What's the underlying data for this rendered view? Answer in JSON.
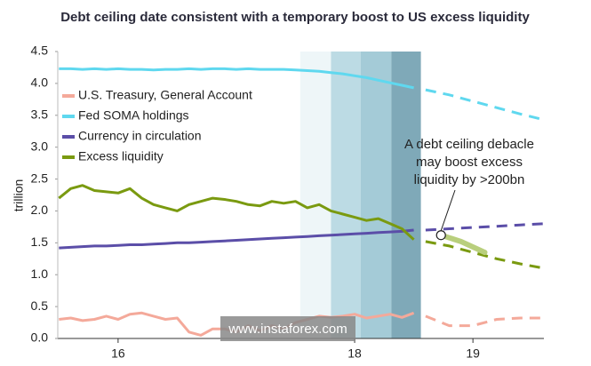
{
  "chart_data": {
    "type": "line",
    "title": "Debt ceiling date consistent with a temporary boost to US excess liquidity",
    "ylabel": "trillion",
    "xlim": [
      2015.49,
      2019.6
    ],
    "ylim": [
      0,
      4.5
    ],
    "xticks": [
      {
        "value": 2016,
        "label": "16"
      },
      {
        "value": 2018,
        "label": "18"
      },
      {
        "value": 2019,
        "label": "19"
      }
    ],
    "yticks": [
      {
        "value": 0,
        "label": "0.0"
      },
      0.5,
      {
        "value": 1,
        "label": "1.0"
      },
      1.5,
      {
        "value": 2,
        "label": "2.0"
      },
      2.5,
      {
        "value": 3,
        "label": "3.0"
      },
      3.5,
      {
        "value": 4,
        "label": "4.0"
      },
      4.5
    ],
    "shaded_ranges": [
      {
        "x": [
          2017.54,
          2017.8
        ],
        "color": "#eef6f8"
      },
      {
        "x": [
          2017.8,
          2018.05
        ],
        "color": "#bcdbe4"
      },
      {
        "x": [
          2018.05,
          2018.31
        ],
        "color": "#a4cbd7"
      },
      {
        "x": [
          2018.31,
          2018.56
        ],
        "color": "#7fa9b8"
      }
    ],
    "x": [
      2015.5,
      2015.6,
      2015.7,
      2015.8,
      2015.9,
      2016.0,
      2016.1,
      2016.2,
      2016.3,
      2016.4,
      2016.5,
      2016.6,
      2016.7,
      2016.8,
      2016.9,
      2017.0,
      2017.1,
      2017.2,
      2017.3,
      2017.4,
      2017.5,
      2017.6,
      2017.7,
      2017.8,
      2017.9,
      2018.0,
      2018.1,
      2018.2,
      2018.3,
      2018.4,
      2018.5
    ],
    "forecast_x": [
      2018.6,
      2018.8,
      2019.0,
      2019.2,
      2019.4,
      2019.6
    ],
    "series": [
      {
        "name": "U.S. Treasury, General Account",
        "color": "#f4a99a",
        "values": [
          0.3,
          0.32,
          0.28,
          0.3,
          0.35,
          0.3,
          0.38,
          0.4,
          0.35,
          0.3,
          0.32,
          0.1,
          0.05,
          0.15,
          0.15,
          0.1,
          0.2,
          0.12,
          0.2,
          0.15,
          0.25,
          0.3,
          0.35,
          0.33,
          0.35,
          0.38,
          0.32,
          0.35,
          0.38,
          0.33,
          0.4
        ],
        "forecast_values": [
          0.35,
          0.2,
          0.2,
          0.3,
          0.32,
          0.32
        ]
      },
      {
        "name": "Fed SOMA holdings",
        "color": "#5fd8ef",
        "values": [
          4.23,
          4.23,
          4.22,
          4.23,
          4.22,
          4.23,
          4.22,
          4.22,
          4.21,
          4.22,
          4.22,
          4.23,
          4.22,
          4.23,
          4.23,
          4.22,
          4.23,
          4.22,
          4.22,
          4.22,
          4.21,
          4.2,
          4.19,
          4.17,
          4.15,
          4.12,
          4.09,
          4.05,
          4.01,
          3.97,
          3.93
        ],
        "forecast_values": [
          3.9,
          3.82,
          3.72,
          3.62,
          3.52,
          3.43
        ]
      },
      {
        "name": "Currency in circulation",
        "color": "#5b4ea8",
        "values": [
          1.42,
          1.43,
          1.44,
          1.45,
          1.45,
          1.46,
          1.47,
          1.47,
          1.48,
          1.49,
          1.5,
          1.5,
          1.51,
          1.52,
          1.53,
          1.54,
          1.55,
          1.56,
          1.57,
          1.58,
          1.59,
          1.6,
          1.61,
          1.62,
          1.63,
          1.64,
          1.65,
          1.66,
          1.67,
          1.68,
          1.7
        ],
        "forecast_values": [
          1.7,
          1.72,
          1.74,
          1.76,
          1.78,
          1.8
        ]
      },
      {
        "name": "Excess liquidity",
        "color": "#7a9a10",
        "values": [
          2.2,
          2.35,
          2.4,
          2.32,
          2.3,
          2.28,
          2.35,
          2.2,
          2.1,
          2.05,
          2.0,
          2.1,
          2.15,
          2.2,
          2.18,
          2.15,
          2.1,
          2.08,
          2.15,
          2.12,
          2.15,
          2.05,
          2.1,
          2.0,
          1.95,
          1.9,
          1.85,
          1.88,
          1.8,
          1.72,
          1.55
        ],
        "forecast_values": [
          1.52,
          1.45,
          1.35,
          1.25,
          1.17,
          1.1
        ]
      }
    ],
    "boost_line": {
      "color": "#b9cf7d",
      "x": [
        2018.73,
        2018.9,
        2019.1
      ],
      "values": [
        1.62,
        1.52,
        1.35
      ]
    },
    "annotation": {
      "lines": [
        "A debt ceiling debacle",
        "may boost excess",
        "liquidity by >200bn"
      ],
      "point": [
        2018.73,
        1.62
      ]
    },
    "watermark": "www.instaforex.com"
  }
}
